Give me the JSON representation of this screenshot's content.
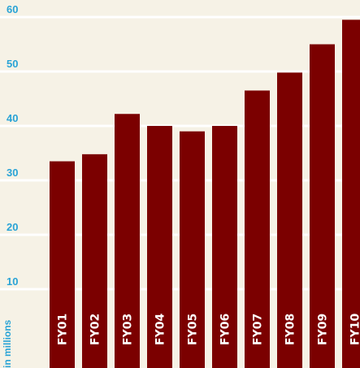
{
  "colors": {
    "background": "#f6f2e6",
    "bar": "#7b0000",
    "gridline": "#ffffff",
    "tick_label": "#29a3d6",
    "category_label": "#ffffff"
  },
  "chart_data": {
    "type": "bar",
    "categories": [
      "FY01",
      "FY02",
      "FY03",
      "FY04",
      "FY05",
      "FY06",
      "FY07",
      "FY08",
      "FY09",
      "FY10"
    ],
    "values": [
      33.5,
      34.8,
      42.2,
      40.0,
      39.0,
      40.0,
      46.5,
      49.8,
      55.0,
      59.5
    ],
    "yticks": [
      10,
      20,
      30,
      40,
      50,
      60
    ],
    "ylim": [
      0,
      62
    ],
    "ylabel": "in millions",
    "grid": true
  }
}
